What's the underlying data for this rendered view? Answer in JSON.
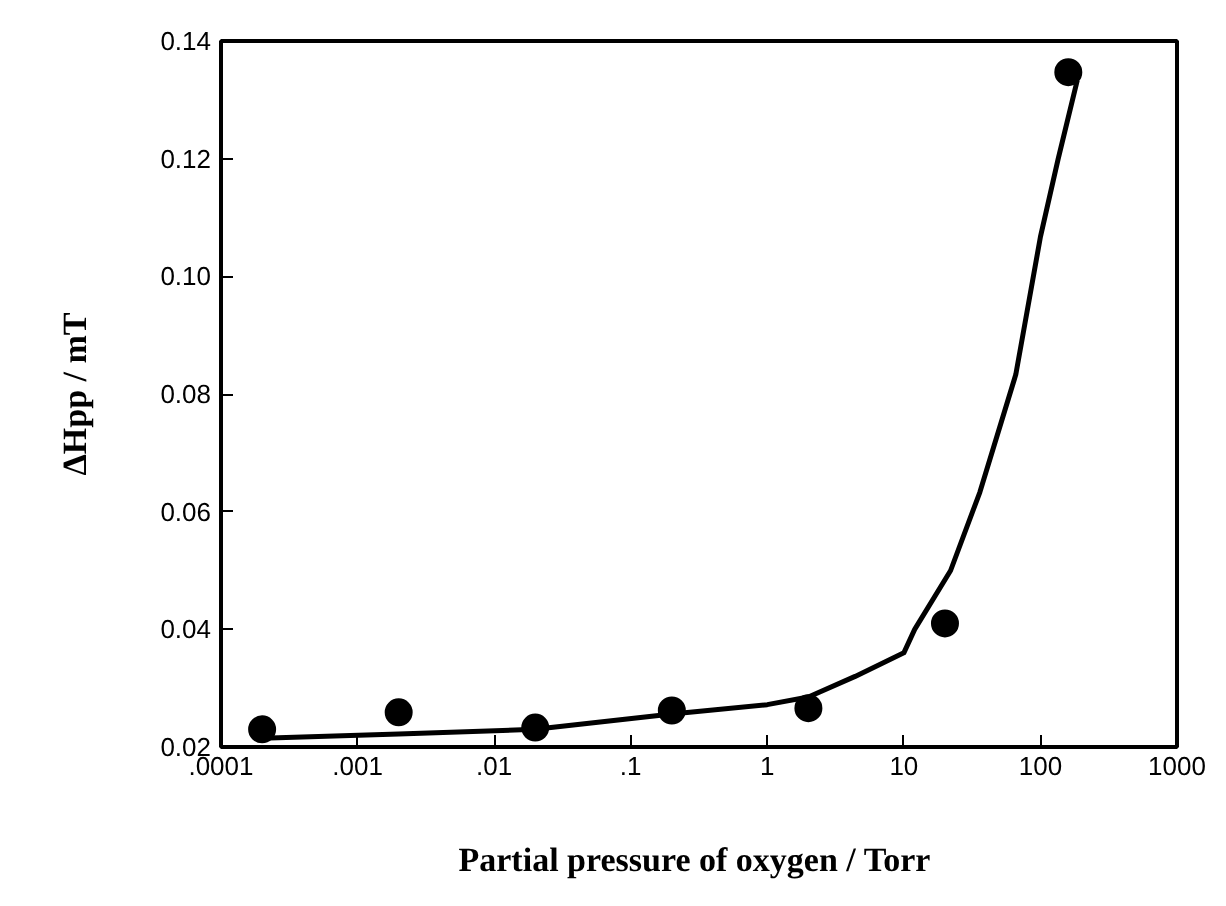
{
  "chart_data": {
    "type": "scatter",
    "xlabel": "Partial pressure of oxygen  / Torr",
    "ylabel": "ΔHpp / mT",
    "log": "x",
    "grid": false,
    "marker": "circle",
    "xlim": [
      0.0001,
      1000
    ],
    "ylim": [
      0.02,
      0.14
    ],
    "xticks": [
      {
        "value": 0.0001,
        "label": ".0001"
      },
      {
        "value": 0.001,
        "label": ".001"
      },
      {
        "value": 0.01,
        "label": ".01"
      },
      {
        "value": 0.1,
        "label": ".1"
      },
      1,
      10,
      100,
      1000
    ],
    "yticks": [
      0.02,
      0.04,
      0.06,
      0.08,
      {
        "value": 0.1,
        "label": "0.10"
      },
      0.12,
      0.14
    ],
    "x": [
      0.0002,
      0.002,
      0.02,
      0.2,
      2,
      20,
      160
    ],
    "series": [
      {
        "color": "#000000",
        "values": [
          0.023,
          0.0259,
          0.0233,
          0.0262,
          0.0266,
          0.041,
          0.1347
        ]
      },
      {
        "type": "line",
        "color": "#000000",
        "line_style": "solid",
        "marker": "none",
        "x": [
          0.0002,
          0.002,
          0.02,
          0.2,
          1,
          2,
          4.4,
          10,
          12,
          22,
          36,
          66,
          100,
          135,
          186
        ],
        "values": [
          0.0215,
          0.0222,
          0.023,
          0.0256,
          0.0272,
          0.0285,
          0.032,
          0.036,
          0.04,
          0.05,
          0.0633,
          0.0833,
          0.1067,
          0.12,
          0.1333
        ]
      }
    ]
  }
}
